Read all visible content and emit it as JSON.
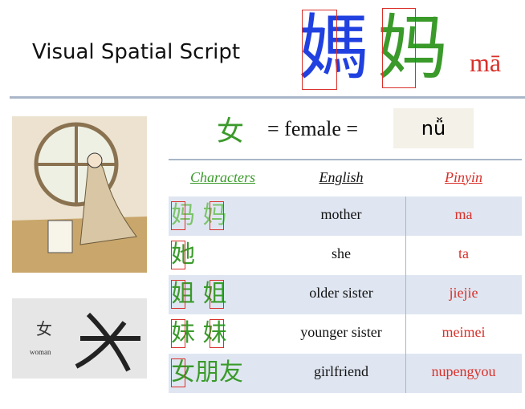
{
  "header": {
    "title": "Visual Spatial Script",
    "traditional": "媽",
    "simplified": "妈",
    "pinyin": "mā"
  },
  "equation": {
    "radical": "女",
    "meaning": "= female =",
    "pinyin": "nǚ"
  },
  "woman_card": {
    "character": "女",
    "label": "woman"
  },
  "table": {
    "headers": [
      "Characters",
      "English",
      "Pinyin"
    ],
    "rows": [
      [
        "妈 妈",
        "mother",
        "ma"
      ],
      [
        "她",
        "she",
        "ta"
      ],
      [
        "姐 姐",
        "older sister",
        "jiejie"
      ],
      [
        "妹 妹",
        "younger sister",
        "meimei"
      ],
      [
        "女朋友",
        "girlfriend",
        "nupengyou"
      ]
    ]
  }
}
